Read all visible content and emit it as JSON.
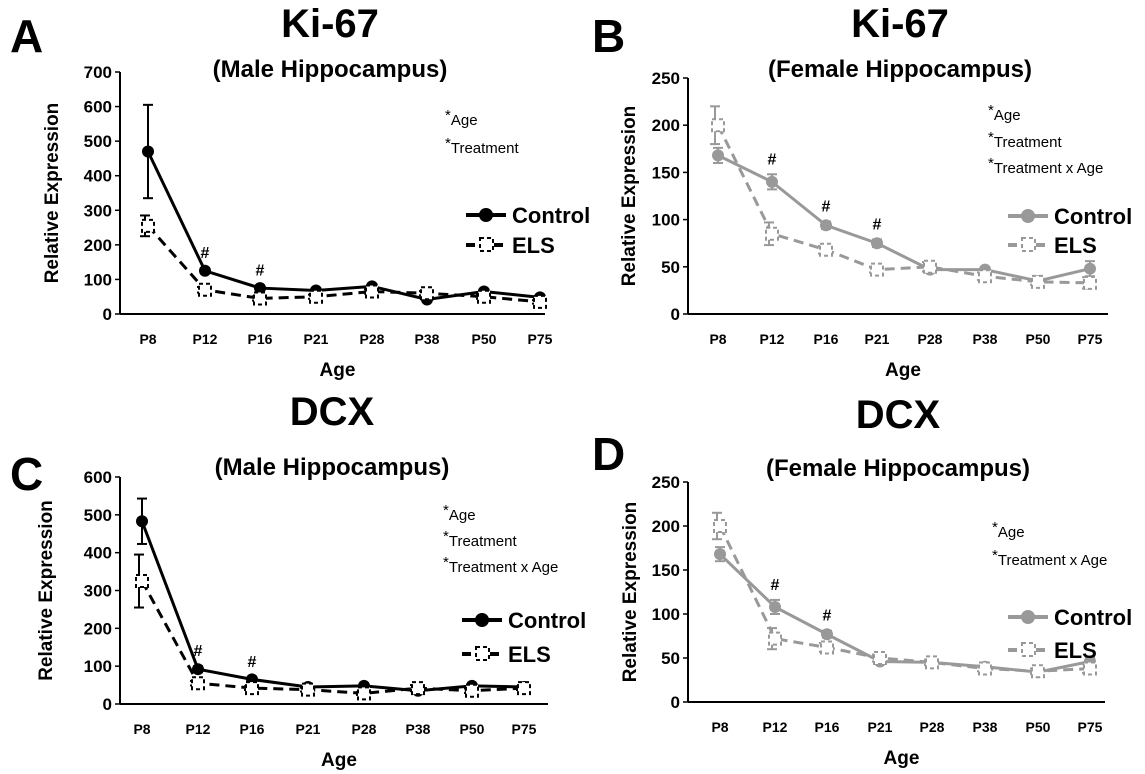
{
  "chart_data": [
    {
      "type": "line",
      "panel": "A",
      "title": "Ki-67",
      "subtitle": "(Male Hippocampus)",
      "xlabel": "Age",
      "ylabel": "Relative Expression",
      "categories": [
        "P8",
        "P12",
        "P16",
        "P21",
        "P28",
        "P38",
        "P50",
        "P75"
      ],
      "ylim": [
        0,
        700
      ],
      "yticks": [
        0,
        100,
        200,
        300,
        400,
        500,
        600,
        700
      ],
      "significance": [
        "Age",
        "Treatment"
      ],
      "color": "#000000",
      "markers": [
        "#",
        "#"
      ],
      "marker_positions": [
        "P12",
        "P16"
      ],
      "series": [
        {
          "name": "Control",
          "style": "solid-circle",
          "values": [
            470,
            125,
            75,
            68,
            80,
            42,
            65,
            48
          ],
          "errors": [
            135,
            8,
            8,
            6,
            6,
            5,
            6,
            5
          ]
        },
        {
          "name": "ELS",
          "style": "dashed-square",
          "values": [
            255,
            70,
            45,
            50,
            65,
            60,
            50,
            35
          ],
          "errors": [
            30,
            8,
            6,
            6,
            6,
            6,
            6,
            5
          ]
        }
      ]
    },
    {
      "type": "line",
      "panel": "B",
      "title": "Ki-67",
      "subtitle": "(Female Hippocampus)",
      "xlabel": "Age",
      "ylabel": "Relative Expression",
      "categories": [
        "P8",
        "P12",
        "P16",
        "P21",
        "P28",
        "P38",
        "P50",
        "P75"
      ],
      "ylim": [
        0,
        250
      ],
      "yticks": [
        0,
        50,
        100,
        150,
        200,
        250
      ],
      "significance": [
        "Age",
        "Treatment",
        "Treatment x Age"
      ],
      "color": "#999999",
      "markers": [
        "#",
        "#",
        "#"
      ],
      "marker_positions": [
        "P12",
        "P16",
        "P21"
      ],
      "series": [
        {
          "name": "Control",
          "style": "solid-diamond",
          "values": [
            168,
            140,
            94,
            75,
            47,
            47,
            35,
            48
          ],
          "errors": [
            8,
            8,
            4,
            4,
            3,
            3,
            3,
            8
          ]
        },
        {
          "name": "ELS",
          "style": "dashed-square",
          "values": [
            200,
            85,
            68,
            47,
            50,
            40,
            34,
            33
          ],
          "errors": [
            20,
            12,
            4,
            3,
            5,
            4,
            3,
            6
          ]
        }
      ]
    },
    {
      "type": "line",
      "panel": "C",
      "title": "DCX",
      "subtitle": "(Male Hippocampus)",
      "xlabel": "Age",
      "ylabel": "Relative Expression",
      "categories": [
        "P8",
        "P12",
        "P16",
        "P21",
        "P28",
        "P38",
        "P50",
        "P75"
      ],
      "ylim": [
        0,
        600
      ],
      "yticks": [
        0,
        100,
        200,
        300,
        400,
        500,
        600
      ],
      "significance": [
        "Age",
        "Treatment",
        "Treatment x Age"
      ],
      "color": "#000000",
      "markers": [
        "#",
        "#"
      ],
      "marker_positions": [
        "P12",
        "P16"
      ],
      "series": [
        {
          "name": "Control",
          "style": "solid-circle",
          "values": [
            483,
            92,
            65,
            45,
            48,
            35,
            48,
            45
          ],
          "errors": [
            60,
            8,
            6,
            5,
            5,
            4,
            5,
            5
          ]
        },
        {
          "name": "ELS",
          "style": "dashed-square",
          "values": [
            325,
            55,
            42,
            38,
            28,
            42,
            35,
            42
          ],
          "errors": [
            70,
            6,
            5,
            5,
            4,
            8,
            6,
            5
          ]
        }
      ]
    },
    {
      "type": "line",
      "panel": "D",
      "title": "DCX",
      "subtitle": "(Female Hippocampus)",
      "xlabel": "Age",
      "ylabel": "Relative Expression",
      "categories": [
        "P8",
        "P12",
        "P16",
        "P21",
        "P28",
        "P38",
        "P50",
        "P75"
      ],
      "ylim": [
        0,
        250
      ],
      "yticks": [
        0,
        50,
        100,
        150,
        200,
        250
      ],
      "significance": [
        "Age",
        "Treatment x Age"
      ],
      "color": "#999999",
      "markers": [
        "#",
        "#"
      ],
      "marker_positions": [
        "P12",
        "P16"
      ],
      "series": [
        {
          "name": "Control",
          "style": "solid-diamond",
          "values": [
            168,
            108,
            77,
            46,
            45,
            40,
            34,
            46
          ],
          "errors": [
            8,
            8,
            4,
            3,
            3,
            3,
            3,
            5
          ]
        },
        {
          "name": "ELS",
          "style": "dashed-square",
          "values": [
            200,
            72,
            62,
            50,
            45,
            38,
            35,
            38
          ],
          "errors": [
            15,
            12,
            5,
            4,
            3,
            3,
            3,
            5
          ]
        }
      ]
    }
  ]
}
